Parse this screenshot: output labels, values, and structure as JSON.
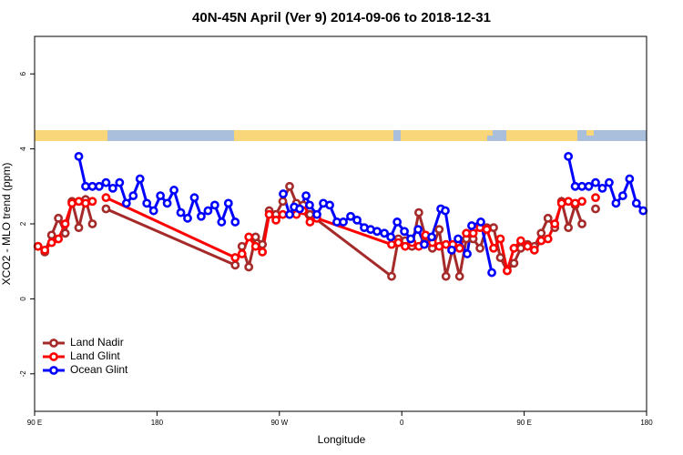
{
  "chart_data": {
    "type": "line",
    "title": "40N-45N April (Ver 9)   2014-09-06 to 2018-12-31",
    "x_label": "Longitude",
    "y_label": "XCO2 - MLO trend (ppm)",
    "xlim": [
      90,
      540
    ],
    "xticks": [
      {
        "value": 90,
        "label": "90 E"
      },
      {
        "value": 180,
        "label": "180"
      },
      {
        "value": 270,
        "label": "90 W"
      },
      {
        "value": 360,
        "label": "0"
      },
      {
        "value": 450,
        "label": "90 E"
      },
      {
        "value": 540,
        "label": "180"
      }
    ],
    "ylim": [
      -3,
      7
    ],
    "yticks": [
      -2,
      0,
      2,
      4,
      6
    ],
    "legend": "bottomleft",
    "series": [
      {
        "name": "Land Nadir",
        "color": "#a52a2a",
        "x": [
          92.5,
          97.5,
          102.5,
          107.5,
          112.5,
          117.5,
          122.5,
          127.5,
          132.5,
          137.5,
          142.5,
          237.5,
          242.5,
          247.5,
          252.5,
          257.5,
          262.5,
          267.5,
          272.5,
          277.5,
          282.5,
          287.5,
          292.5,
          352.5,
          357.5,
          362.5,
          367.5,
          372.5,
          377.5,
          382.5,
          387.5,
          392.5,
          397.5,
          402.5,
          407.5,
          412.5,
          417.5,
          422.5,
          427.5,
          432.5,
          437.5,
          442.5,
          447.5,
          452.5,
          457.5,
          462.5,
          467.5,
          472.5,
          477.5,
          482.5,
          487.5,
          492.5,
          497.5,
          502.5
        ],
        "values": [
          1.4,
          1.25,
          1.7,
          2.15,
          1.75,
          2.6,
          1.9,
          2.65,
          2.0,
          null,
          2.4,
          0.9,
          1.4,
          0.85,
          1.65,
          1.45,
          2.35,
          2.25,
          2.6,
          3.0,
          2.55,
          2.5,
          2.25,
          0.6,
          1.6,
          1.55,
          1.4,
          2.3,
          1.65,
          1.35,
          1.85,
          0.6,
          1.35,
          0.6,
          1.6,
          1.6,
          1.35,
          1.9,
          1.9,
          1.1,
          0.75,
          0.95,
          1.35,
          1.45,
          1.4,
          1.75,
          2.15,
          1.9,
          2.6,
          1.9,
          2.5,
          2.0,
          null,
          2.4
        ]
      },
      {
        "name": "Land Glint",
        "color": "#ff0000",
        "x": [
          92.5,
          97.5,
          102.5,
          107.5,
          112.5,
          117.5,
          122.5,
          127.5,
          132.5,
          137.5,
          142.5,
          237.5,
          242.5,
          247.5,
          252.5,
          257.5,
          262.5,
          267.5,
          272.5,
          277.5,
          282.5,
          287.5,
          292.5,
          297.5,
          352.5,
          357.5,
          362.5,
          367.5,
          372.5,
          377.5,
          382.5,
          387.5,
          392.5,
          397.5,
          402.5,
          407.5,
          412.5,
          417.5,
          422.5,
          427.5,
          432.5,
          437.5,
          442.5,
          447.5,
          452.5,
          457.5,
          462.5,
          467.5,
          472.5,
          477.5,
          482.5,
          487.5,
          492.5,
          497.5,
          502.5
        ],
        "values": [
          1.4,
          1.3,
          1.5,
          1.6,
          2.0,
          2.55,
          2.6,
          2.55,
          2.6,
          null,
          2.7,
          1.1,
          1.2,
          1.65,
          1.4,
          1.25,
          2.25,
          2.1,
          2.25,
          2.25,
          2.25,
          2.35,
          2.05,
          2.15,
          1.45,
          1.5,
          1.4,
          1.5,
          1.4,
          1.7,
          1.5,
          1.4,
          1.45,
          1.45,
          1.35,
          1.75,
          1.75,
          1.9,
          1.85,
          1.35,
          1.6,
          0.75,
          1.35,
          1.55,
          1.4,
          1.3,
          1.55,
          1.6,
          2.0,
          2.55,
          2.6,
          2.55,
          2.6,
          null,
          2.7
        ]
      },
      {
        "name": "Ocean Glint",
        "color": "#0000ff",
        "x": [
          122.5,
          127.5,
          132.5,
          137.5,
          142.5,
          147.5,
          152.5,
          157.5,
          162.5,
          167.5,
          172.5,
          177.5,
          182.5,
          187.5,
          192.5,
          197.5,
          202.5,
          207.5,
          212.5,
          217.5,
          222.5,
          227.5,
          232.5,
          237.5,
          255,
          272.8,
          277.5,
          280.9,
          284.9,
          289.6,
          292.2,
          297.6,
          302.3,
          307,
          312.3,
          317,
          322.4,
          327.1,
          332.4,
          337.1,
          341.8,
          347.2,
          351.9,
          356.6,
          361.9,
          366.6,
          372,
          376.6,
          382,
          388.7,
          392,
          396.7,
          401.4,
          408.1,
          411.4,
          418.1,
          426.2,
          450,
          482.5,
          487.5,
          492.5,
          497.5,
          502.5,
          507.5,
          512.5,
          517.5,
          522.5,
          527.5,
          532.5,
          537.5
        ],
        "values": [
          3.8,
          3.0,
          3.0,
          3.0,
          3.1,
          2.95,
          3.1,
          2.55,
          2.75,
          3.2,
          2.55,
          2.35,
          2.75,
          2.55,
          2.9,
          2.3,
          2.15,
          2.7,
          2.2,
          2.35,
          2.5,
          2.05,
          2.55,
          2.05,
          null,
          2.8,
          2.25,
          2.45,
          2.4,
          2.75,
          2.5,
          2.25,
          2.55,
          2.5,
          2.05,
          2.05,
          2.2,
          2.1,
          1.9,
          1.85,
          1.8,
          1.75,
          1.65,
          2.05,
          1.8,
          1.6,
          1.85,
          1.45,
          1.65,
          2.4,
          2.35,
          1.3,
          1.6,
          1.2,
          1.95,
          2.05,
          0.7,
          null,
          3.8,
          3.0,
          3.0,
          3.0,
          3.1,
          2.95,
          3.1,
          2.55,
          2.75,
          3.2,
          2.55,
          2.35
        ]
      }
    ]
  }
}
